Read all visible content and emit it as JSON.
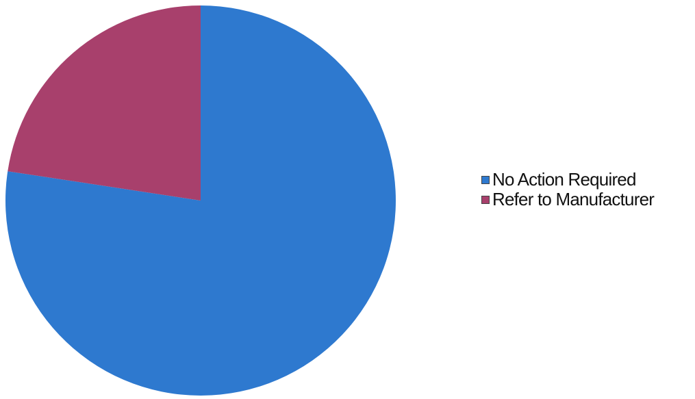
{
  "chart_data": {
    "type": "pie",
    "title": "",
    "start_angle_deg": 0,
    "direction": "clockwise",
    "legend_position": "right",
    "slices": [
      {
        "label": "No Action Required",
        "value": 77.4,
        "color": "#2e79cf"
      },
      {
        "label": "Refer to Manufacturer",
        "value": 22.6,
        "color": "#a8406c"
      }
    ]
  }
}
